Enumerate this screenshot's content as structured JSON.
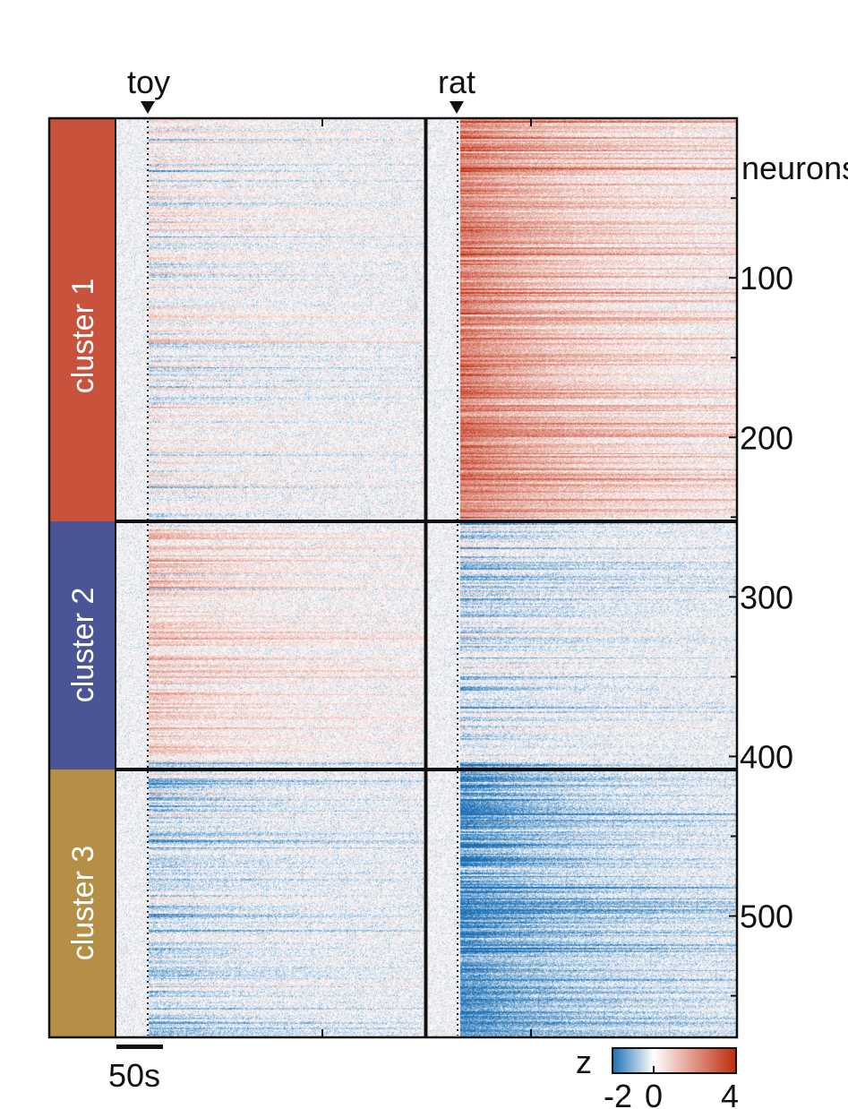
{
  "chart_data": {
    "type": "heatmap",
    "panels": [
      {
        "stimulus": "toy",
        "onset_s": 30
      },
      {
        "stimulus": "rat",
        "onset_s": 30
      }
    ],
    "y_axis": {
      "label": "neurons",
      "ticks": [
        100,
        200,
        300,
        400,
        500
      ],
      "range": [
        1,
        575
      ]
    },
    "clusters": [
      {
        "name": "cluster 1",
        "rows": [
          1,
          250
        ],
        "color": "#c8523c",
        "toy_level": 0.15,
        "rat_level": 2.6
      },
      {
        "name": "cluster 2",
        "rows": [
          251,
          403
        ],
        "color": "#4a5597",
        "toy_level": 0.9,
        "rat_level": -0.3
      },
      {
        "name": "cluster 3",
        "rows": [
          404,
          575
        ],
        "color": "#b48f45",
        "toy_level": -0.6,
        "rat_level": -1.7
      }
    ],
    "scale_bar": {
      "label": "50s",
      "duration_s": 50
    },
    "colorbar": {
      "label": "z",
      "min": -2,
      "max": 4,
      "tick_labels": [
        "-2",
        "0",
        "4"
      ],
      "colors": [
        "#1a6fb5",
        "#ffffff",
        "#c0290c"
      ]
    }
  }
}
